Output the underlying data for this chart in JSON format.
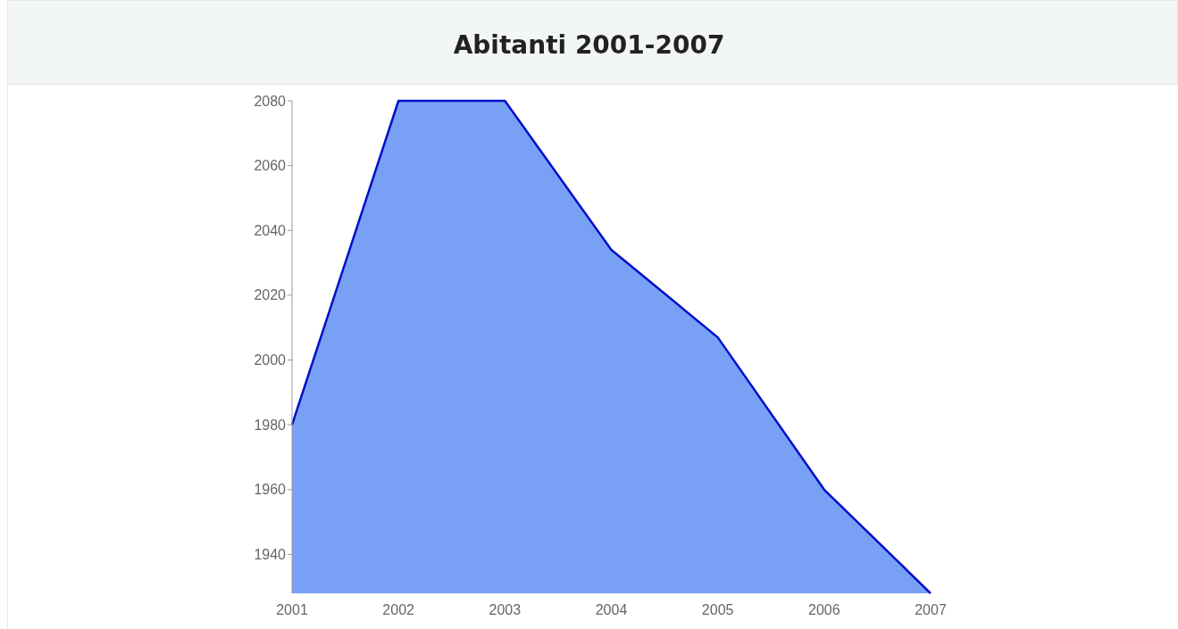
{
  "chart_data": {
    "type": "area",
    "title": "Abitanti 2001-2007",
    "categories": [
      "2001",
      "2002",
      "2003",
      "2004",
      "2005",
      "2006",
      "2007"
    ],
    "series": [
      {
        "color": "#78a1f6",
        "values": [
          1980,
          2080,
          2080,
          2034,
          2007,
          1960,
          1928
        ]
      }
    ],
    "ylim": [
      1928,
      2080
    ],
    "yticks": [
      1940,
      1960,
      1980,
      2000,
      2020,
      2040,
      2060,
      2080
    ]
  }
}
